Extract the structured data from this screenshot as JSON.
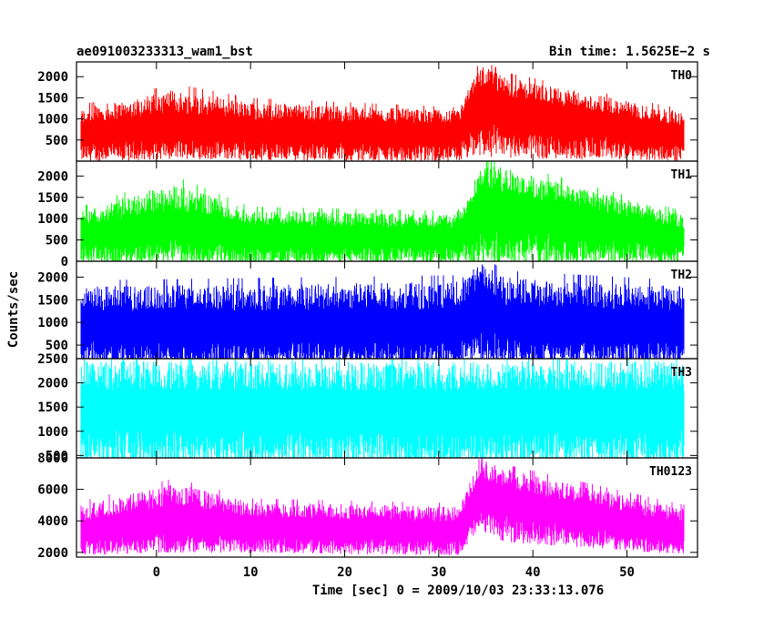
{
  "header": {
    "left": "ae091003233313_wam1_bst",
    "right": "Bin time: 1.5625E−2 s"
  },
  "chart_data": {
    "type": "line",
    "title": "ae091003233313_wam1_bst",
    "subtitle": "Bin time: 1.5625E−2 s",
    "xlabel": "Time [sec] 0 = 2009/10/03 23:33:13.076",
    "ylabel": "Counts/sec",
    "xlim": [
      -8.5,
      57.5
    ],
    "x_ticks": [
      0,
      10,
      20,
      30,
      40,
      50
    ],
    "x_tick_labels": [
      "0",
      "10",
      "20",
      "30",
      "40",
      "50"
    ],
    "data_range": [
      -8,
      56
    ],
    "bin_time": 0.015625,
    "grid": false,
    "legend": "none",
    "panels": [
      {
        "name": "TH0",
        "color": "#ff0000",
        "ylim": [
          0,
          2350
        ],
        "y_ticks": [
          500,
          1000,
          1500,
          2000
        ],
        "y_tick_labels": [
          "500",
          "1000",
          "1500",
          "2000"
        ],
        "features": [
          {
            "t": -8,
            "low": 200,
            "mid": 700,
            "high": 1250
          },
          {
            "t": 2,
            "low": 300,
            "mid": 850,
            "high": 1700
          },
          {
            "t": 10,
            "low": 250,
            "mid": 750,
            "high": 1400
          },
          {
            "t": 32,
            "low": 200,
            "mid": 700,
            "high": 1200
          },
          {
            "t": 34.5,
            "low": 550,
            "mid": 1500,
            "high": 2300
          },
          {
            "t": 37,
            "low": 450,
            "mid": 1300,
            "high": 2000
          },
          {
            "t": 56,
            "low": 200,
            "mid": 650,
            "high": 1150
          }
        ]
      },
      {
        "name": "TH1",
        "color": "#00ff00",
        "ylim": [
          0,
          2350
        ],
        "y_ticks": [
          0,
          500,
          1000,
          1500,
          2000
        ],
        "y_tick_labels": [
          "0",
          "500",
          "1000",
          "1500",
          "2000"
        ],
        "features": [
          {
            "t": -8,
            "low": 150,
            "mid": 650,
            "high": 1200
          },
          {
            "t": 2,
            "low": 250,
            "mid": 850,
            "high": 1850
          },
          {
            "t": 10,
            "low": 150,
            "mid": 650,
            "high": 1200
          },
          {
            "t": 32,
            "low": 150,
            "mid": 600,
            "high": 1100
          },
          {
            "t": 34.5,
            "low": 400,
            "mid": 1450,
            "high": 2300
          },
          {
            "t": 37,
            "low": 350,
            "mid": 1300,
            "high": 2200
          },
          {
            "t": 56,
            "low": 150,
            "mid": 600,
            "high": 1100
          }
        ]
      },
      {
        "name": "TH2",
        "color": "#0000ff",
        "ylim": [
          200,
          2350
        ],
        "y_ticks": [
          500,
          1000,
          1500,
          2000
        ],
        "y_tick_labels": [
          "500",
          "1000",
          "1500",
          "2000"
        ],
        "features": [
          {
            "t": -8,
            "low": 300,
            "mid": 950,
            "high": 1800
          },
          {
            "t": 32,
            "low": 300,
            "mid": 950,
            "high": 1900
          },
          {
            "t": 34.5,
            "low": 550,
            "mid": 1500,
            "high": 2350
          },
          {
            "t": 37,
            "low": 350,
            "mid": 1050,
            "high": 2000
          },
          {
            "t": 56,
            "low": 300,
            "mid": 950,
            "high": 1800
          }
        ]
      },
      {
        "name": "TH3",
        "color": "#00ffff",
        "ylim": [
          450,
          2500
        ],
        "y_ticks": [
          500,
          1000,
          1500,
          2000,
          2500
        ],
        "y_tick_labels": [
          "500",
          "1000",
          "1500",
          "2000",
          "2500"
        ],
        "features": [
          {
            "t": -8,
            "low": 650,
            "mid": 1500,
            "high": 2450
          },
          {
            "t": 56,
            "low": 650,
            "mid": 1500,
            "high": 2450
          }
        ]
      },
      {
        "name": "TH0123",
        "color": "#ff00ff",
        "ylim": [
          1700,
          8000
        ],
        "y_ticks": [
          2000,
          4000,
          6000,
          8000
        ],
        "y_tick_labels": [
          "2000",
          "4000",
          "6000",
          "8000"
        ],
        "features": [
          {
            "t": -8,
            "low": 2300,
            "mid": 3400,
            "high": 5000
          },
          {
            "t": 2,
            "low": 2700,
            "mid": 4300,
            "high": 6400
          },
          {
            "t": 10,
            "low": 2500,
            "mid": 3700,
            "high": 5200
          },
          {
            "t": 32,
            "low": 2300,
            "mid": 3400,
            "high": 4900
          },
          {
            "t": 34.5,
            "low": 4200,
            "mid": 6000,
            "high": 7900
          },
          {
            "t": 37,
            "low": 3500,
            "mid": 5400,
            "high": 7300
          },
          {
            "t": 56,
            "low": 2300,
            "mid": 3300,
            "high": 4800
          }
        ]
      }
    ]
  }
}
